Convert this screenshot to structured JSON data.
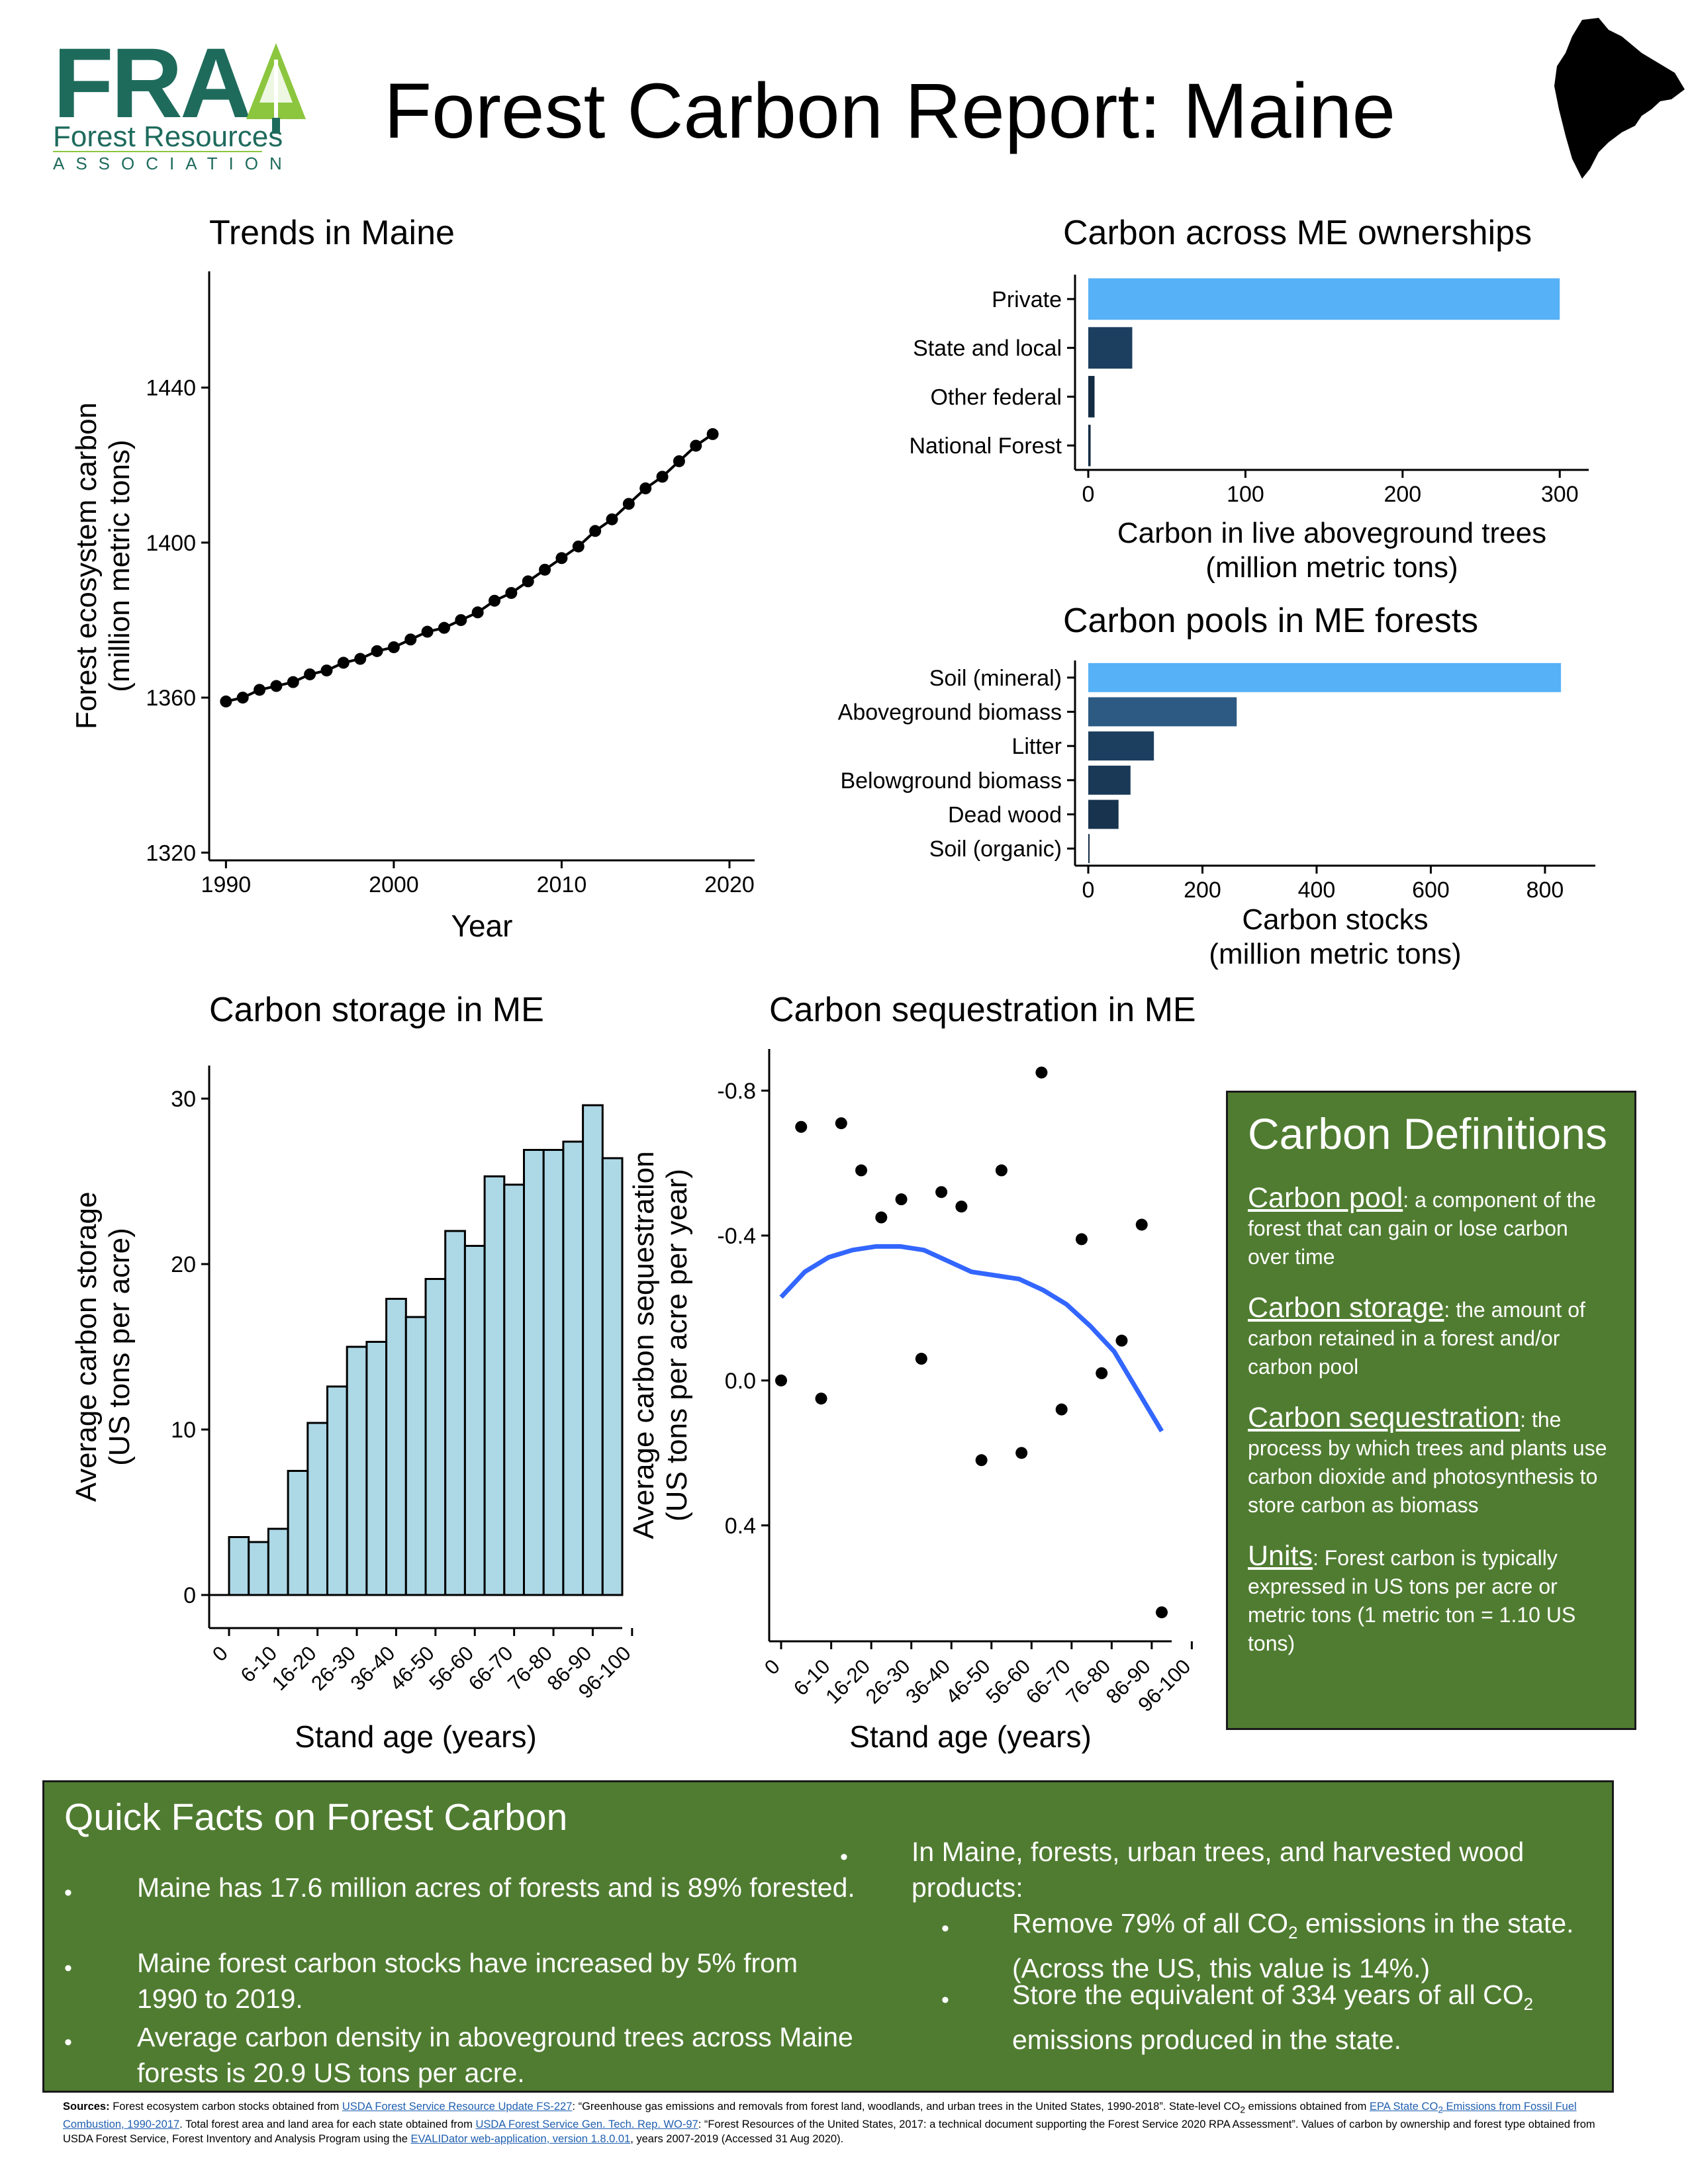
{
  "header": {
    "logo_text": "FRA",
    "logo_org": "Forest Resources",
    "logo_assoc": "ASSOCIATION",
    "title": "Forest Carbon Report: Maine"
  },
  "chart_data": [
    {
      "id": "trends",
      "type": "line",
      "title": "Trends in Maine",
      "xlabel": "Year",
      "ylabel": [
        "Forest ecosystem carbon",
        "(million metric tons)"
      ],
      "xlim": [
        1989,
        2021.5
      ],
      "ylim": [
        1318,
        1470
      ],
      "xticks": [
        1990,
        2000,
        2010,
        2020
      ],
      "yticks": [
        1320,
        1360,
        1400,
        1440
      ],
      "x": [
        1990,
        1991,
        1992,
        1993,
        1994,
        1995,
        1996,
        1997,
        1998,
        1999,
        2000,
        2001,
        2002,
        2003,
        2004,
        2005,
        2006,
        2007,
        2008,
        2009,
        2010,
        2011,
        2012,
        2013,
        2014,
        2015,
        2016,
        2017,
        2018,
        2019
      ],
      "y": [
        1359,
        1360,
        1362,
        1363,
        1364,
        1366,
        1367,
        1369,
        1370,
        1372,
        1373,
        1375,
        1377,
        1378,
        1380,
        1382,
        1385,
        1387,
        1390,
        1393,
        1396,
        1399,
        1403,
        1406,
        1410,
        1414,
        1417,
        1421,
        1425,
        1428
      ]
    },
    {
      "id": "ownership",
      "type": "bar",
      "orientation": "horizontal",
      "title": "Carbon across ME ownerships",
      "xlabel": [
        "Carbon in live aboveground trees",
        "(million metric tons)"
      ],
      "xlim": [
        0,
        310
      ],
      "xticks": [
        0,
        100,
        200,
        300
      ],
      "categories": [
        "Private",
        "State and local",
        "Other federal",
        "National Forest"
      ],
      "values": [
        300,
        28,
        4,
        1.5
      ],
      "colors": [
        "#56b1f7",
        "#1c3f60",
        "#132b43",
        "#132b43"
      ]
    },
    {
      "id": "pools",
      "type": "bar",
      "orientation": "horizontal",
      "title": "Carbon pools in ME forests",
      "xlabel": [
        "Carbon stocks",
        "(million metric tons)"
      ],
      "xlim": [
        0,
        865
      ],
      "xticks": [
        0,
        200,
        400,
        600,
        800
      ],
      "categories": [
        "Soil (mineral)",
        "Aboveground biomass",
        "Litter",
        "Belowground biomass",
        "Dead wood",
        "Soil (organic)"
      ],
      "values": [
        828,
        260,
        115,
        74,
        53,
        2
      ],
      "colors": [
        "#56b1f7",
        "#2c5a83",
        "#1d3f5f",
        "#193956",
        "#17334e",
        "#132b43"
      ]
    },
    {
      "id": "storage",
      "type": "bar",
      "title": "Carbon storage in ME",
      "xlabel": "Stand age (years)",
      "ylabel": [
        "Average carbon storage",
        "(US tons per acre)"
      ],
      "ylim": [
        -2,
        32
      ],
      "yticks": [
        0,
        10,
        20,
        30
      ],
      "tick_labels": [
        "0",
        "6-10",
        "16-20",
        "26-30",
        "36-40",
        "46-50",
        "56-60",
        "66-70",
        "76-80",
        "86-90",
        "96-100"
      ],
      "values": [
        3.5,
        3.2,
        4.0,
        7.5,
        10.4,
        12.6,
        15.0,
        15.3,
        17.9,
        16.8,
        19.1,
        22.0,
        21.1,
        25.3,
        24.8,
        26.9,
        26.9,
        27.4,
        29.6,
        26.4
      ],
      "bar_color": "#add8e6"
    },
    {
      "id": "sequestration",
      "type": "scatter",
      "title": "Carbon sequestration in ME",
      "xlabel": "Stand age (years)",
      "ylabel": [
        "Average carbon sequestration",
        "(US tons per acre per year)"
      ],
      "y_reversed": true,
      "ylim": [
        -0.915,
        0.72
      ],
      "yticks": [
        -0.8,
        -0.4,
        0.0,
        0.4
      ],
      "ytick_labels": [
        "-0.8",
        "-0.4",
        "0.0",
        "0.4"
      ],
      "tick_labels": [
        "0",
        "6-10",
        "16-20",
        "26-30",
        "36-40",
        "46-50",
        "56-60",
        "66-70",
        "76-80",
        "86-90",
        "96-100"
      ],
      "values": [
        0.0,
        -0.7,
        0.05,
        -0.71,
        -0.58,
        -0.45,
        -0.5,
        -0.06,
        -0.52,
        -0.48,
        0.22,
        -0.58,
        0.2,
        -0.85,
        0.08,
        -0.39,
        -0.02,
        -0.11,
        -0.43,
        0.64
      ],
      "trend": [
        -0.23,
        -0.3,
        -0.34,
        -0.36,
        -0.37,
        -0.37,
        -0.36,
        -0.33,
        -0.3,
        -0.29,
        -0.28,
        -0.25,
        -0.21,
        -0.15,
        -0.08,
        0.03,
        0.14
      ],
      "trend_color": "#3366ff"
    }
  ],
  "definitions": {
    "title": "Carbon Definitions",
    "items": [
      {
        "term": "Carbon pool",
        "text": ": a component of the forest that can gain or lose carbon over time"
      },
      {
        "term": "Carbon storage",
        "text": ": the amount of carbon retained in a forest and/or carbon pool"
      },
      {
        "term": "Carbon sequestration",
        "text": ": the process by which trees and plants use carbon dioxide and photosynthesis to store carbon as biomass"
      },
      {
        "term": "Units",
        "text": ": Forest carbon is typically expressed in US tons per acre or metric tons  (1 metric ton = 1.10 US tons)"
      }
    ]
  },
  "quick_facts": {
    "title": "Quick Facts on Forest Carbon",
    "left": [
      "Maine has 17.6 million acres of forests and is 89% forested.",
      "Maine forest carbon stocks have increased by 5% from 1990 to 2019.",
      "Average carbon density in aboveground trees across Maine forests is 20.9 US tons per acre."
    ],
    "right_intro": "In Maine, forests, urban trees, and harvested wood products:",
    "right_sub1_a": "Remove 79% of all CO",
    "right_sub1_b": " emissions in the state. (Across the US, this value is 14%.)",
    "right_sub2_a": "Store the equivalent of 334 years of all CO",
    "right_sub2_b": " emissions produced in the state.",
    "co2_subscript": "2",
    "bullet": "•"
  },
  "sources": {
    "label": "Sources:",
    "t1": " Forest ecosystem carbon stocks obtained from ",
    "l1": "USDA Forest Service Resource Update FS-227",
    "t2": ": “Greenhouse gas emissions and removals from forest land, woodlands, and urban trees in the United States, 1990-2018”. State-level CO",
    "t3": " emissions obtained from ",
    "l2": "EPA State CO",
    "l2b": " Emissions from Fossil Fuel Combustion, 1990-2017",
    "t4": ". Total forest area and land area for each state obtained from ",
    "l3": "USDA Forest Service Gen. Tech. Rep. WO-97",
    "t5": ": “Forest Resources of the United States, 2017: a technical document supporting the Forest Service 2020 RPA Assessment”. Values of carbon by ownership and forest type obtained from USDA Forest Service, Forest Inventory and Analysis Program using the ",
    "l4": "EVALIDator web-application, version 1.8.0.01",
    "t6": ", years 2007-2019 (Accessed 31 Aug 2020).",
    "sub": "2"
  }
}
